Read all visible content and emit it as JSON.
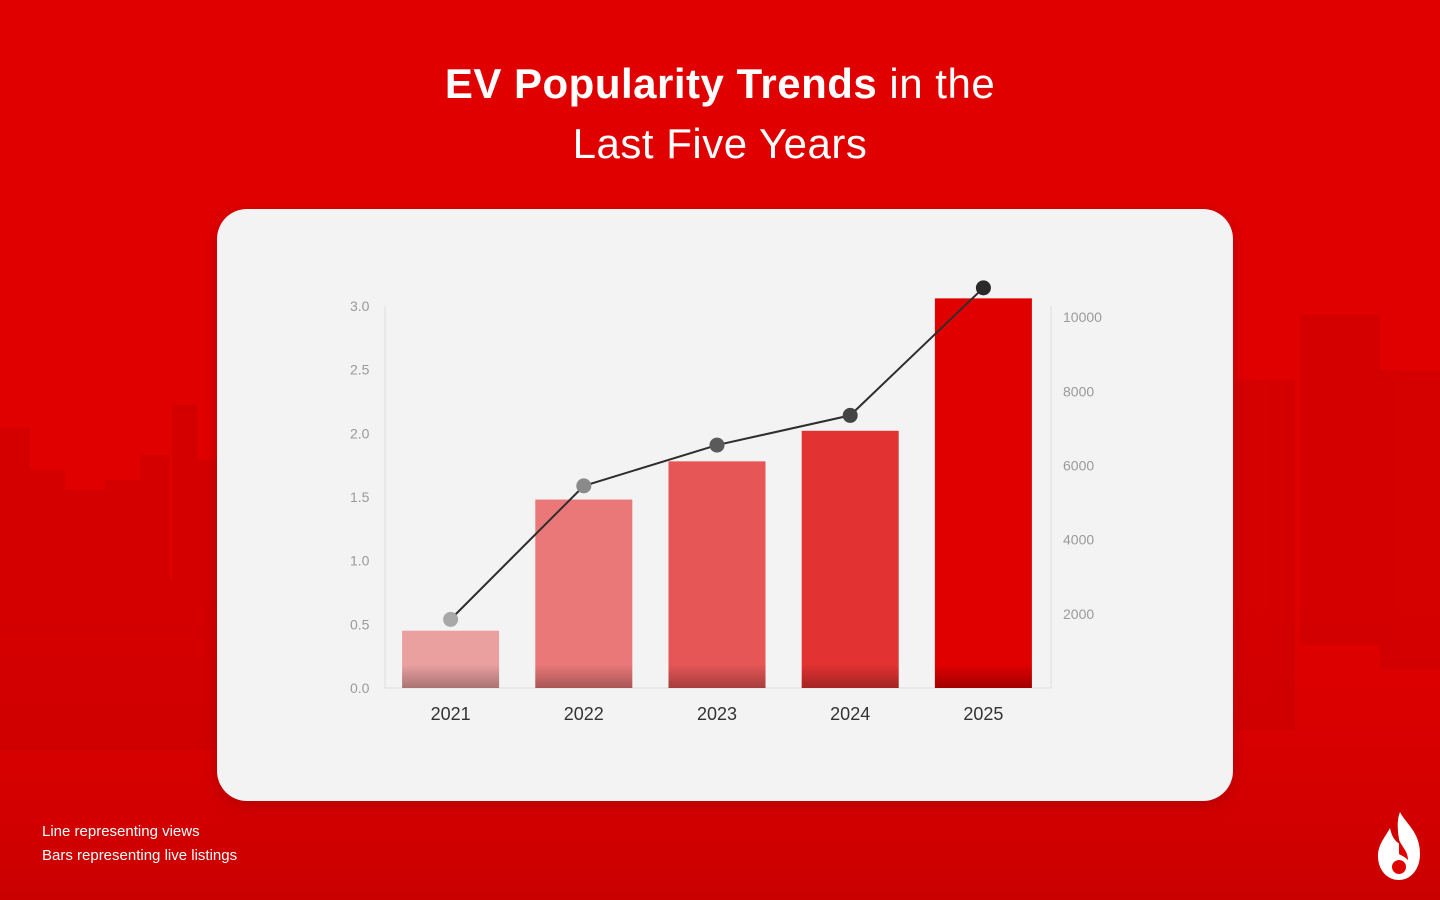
{
  "title": {
    "bold": "EV Popularity Trends",
    "light_1": " in the",
    "line_2": "Last Five Years"
  },
  "legend_notes": {
    "line": "Line representing views",
    "bars": "Bars representing live listings"
  },
  "colors": {
    "background": "#e00000",
    "card": "#f3f3f3",
    "bars": [
      "#eba0a0",
      "#eb7878",
      "#e65656",
      "#e33232",
      "#e00000"
    ],
    "points": [
      "#a8a8a8",
      "#8a8a8a",
      "#5a5a5a",
      "#444444",
      "#2a2a2a"
    ],
    "line": "#2e2e2e",
    "axis_text": "#9a9a9a",
    "category_text": "#333333"
  },
  "logo": "flame-logo",
  "chart_data": {
    "type": "bar",
    "categories": [
      "2021",
      "2022",
      "2023",
      "2024",
      "2025"
    ],
    "series": [
      {
        "type": "bar",
        "axis": "left",
        "values": [
          0.45,
          1.48,
          1.78,
          2.02,
          3.06
        ]
      },
      {
        "type": "line",
        "axis": "right",
        "values": [
          1850,
          5450,
          6550,
          7350,
          10790
        ]
      }
    ],
    "y_left": {
      "ylim": [
        0,
        3.0
      ],
      "ticks": [
        "0.0",
        "0.5",
        "1.0",
        "1.5",
        "2.0",
        "2.5",
        "3.0"
      ]
    },
    "y_right": {
      "ylim": [
        0,
        10300
      ],
      "ticks": [
        "2000",
        "4000",
        "6000",
        "8000",
        "10000"
      ]
    },
    "grid": false
  }
}
